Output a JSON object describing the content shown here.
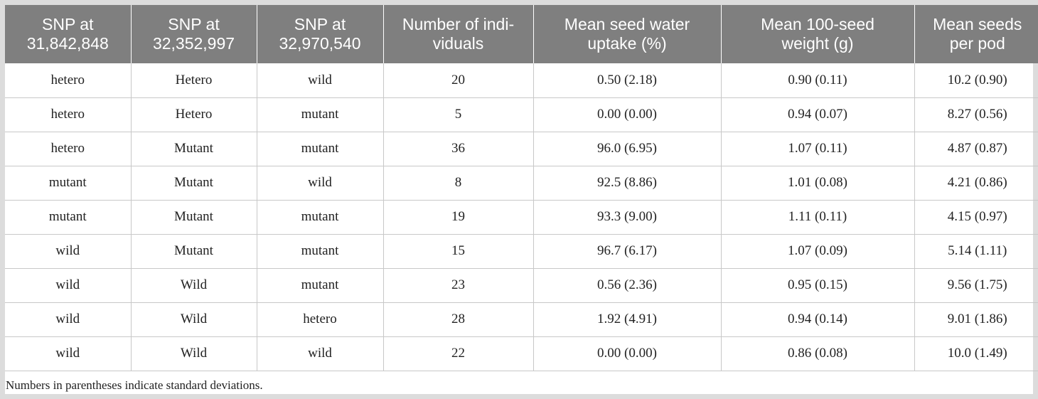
{
  "table": {
    "headers": [
      [
        "SNP at",
        "31,842,848"
      ],
      [
        "SNP at",
        "32,352,997"
      ],
      [
        "SNP at",
        "32,970,540"
      ],
      [
        "Number of indi-",
        "viduals"
      ],
      [
        "Mean seed water",
        "uptake (%)"
      ],
      [
        "Mean 100-seed",
        "weight (g)"
      ],
      [
        "Mean seeds",
        "per pod"
      ]
    ],
    "rows": [
      [
        "hetero",
        "Hetero",
        "wild",
        "20",
        "0.50 (2.18)",
        "0.90 (0.11)",
        "10.2 (0.90)"
      ],
      [
        "hetero",
        "Hetero",
        "mutant",
        "5",
        "0.00 (0.00)",
        "0.94 (0.07)",
        "8.27 (0.56)"
      ],
      [
        "hetero",
        "Mutant",
        "mutant",
        "36",
        "96.0 (6.95)",
        "1.07 (0.11)",
        "4.87 (0.87)"
      ],
      [
        "mutant",
        "Mutant",
        "wild",
        "8",
        "92.5 (8.86)",
        "1.01 (0.08)",
        "4.21 (0.86)"
      ],
      [
        "mutant",
        "Mutant",
        "mutant",
        "19",
        "93.3 (9.00)",
        "1.11 (0.11)",
        "4.15 (0.97)"
      ],
      [
        "wild",
        "Mutant",
        "mutant",
        "15",
        "96.7 (6.17)",
        "1.07 (0.09)",
        "5.14 (1.11)"
      ],
      [
        "wild",
        "Wild",
        "mutant",
        "23",
        "0.56 (2.36)",
        "0.95 (0.15)",
        "9.56 (1.75)"
      ],
      [
        "wild",
        "Wild",
        "hetero",
        "28",
        "1.92 (4.91)",
        "0.94 (0.14)",
        "9.01 (1.86)"
      ],
      [
        "wild",
        "Wild",
        "wild",
        "22",
        "0.00 (0.00)",
        "0.86 (0.08)",
        "10.0 (1.49)"
      ]
    ],
    "footnote": "Numbers in parentheses indicate standard deviations."
  },
  "colors": {
    "header_bg": "#7f7f7f",
    "header_text": "#ffffff",
    "grid_line": "#c8c8c8",
    "page_bg": "#dcdcdc"
  }
}
